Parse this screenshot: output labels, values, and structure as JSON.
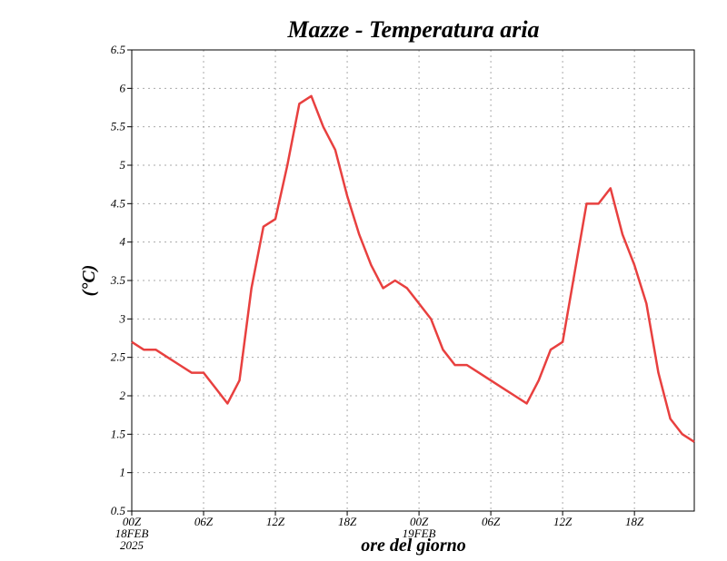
{
  "chart_data": {
    "type": "line",
    "title": "Mazze - Temperatura aria",
    "xlabel": "ore del giorno",
    "ylabel": "(°C)",
    "x": [
      0,
      1,
      2,
      3,
      4,
      5,
      6,
      7,
      8,
      9,
      10,
      11,
      12,
      13,
      14,
      15,
      16,
      17,
      18,
      19,
      20,
      21,
      22,
      23,
      24,
      25,
      26,
      27,
      28,
      29,
      30,
      31,
      32,
      33,
      34,
      35,
      36,
      37,
      38,
      39,
      40,
      41,
      42,
      43,
      44,
      45,
      46,
      47
    ],
    "series": [
      {
        "name": "Temperatura aria",
        "color": "#e8403f",
        "values": [
          2.7,
          2.6,
          2.6,
          2.5,
          2.4,
          2.3,
          2.3,
          2.1,
          1.9,
          2.2,
          3.4,
          4.2,
          4.3,
          5.0,
          5.8,
          5.9,
          5.5,
          5.2,
          4.6,
          4.1,
          3.7,
          3.4,
          3.5,
          3.4,
          3.2,
          3.0,
          2.6,
          2.4,
          2.4,
          2.3,
          2.2,
          2.1,
          2.0,
          1.9,
          2.2,
          2.6,
          2.7,
          3.6,
          4.5,
          4.5,
          4.7,
          4.1,
          3.7,
          3.2,
          2.3,
          1.7,
          1.5,
          1.4
        ]
      }
    ],
    "xlim": [
      0,
      47
    ],
    "xticks": [
      {
        "value": 0,
        "label": [
          "00Z",
          "18FEB",
          "2025"
        ]
      },
      {
        "value": 6,
        "label": [
          "06Z"
        ]
      },
      {
        "value": 12,
        "label": [
          "12Z"
        ]
      },
      {
        "value": 18,
        "label": [
          "18Z"
        ]
      },
      {
        "value": 24,
        "label": [
          "00Z",
          "19FEB"
        ]
      },
      {
        "value": 30,
        "label": [
          "06Z"
        ]
      },
      {
        "value": 36,
        "label": [
          "12Z"
        ]
      },
      {
        "value": 42,
        "label": [
          "18Z"
        ]
      }
    ],
    "ylim": [
      0.5,
      6.5
    ],
    "yticks": [
      0.5,
      1,
      1.5,
      2,
      2.5,
      3,
      3.5,
      4,
      4.5,
      5,
      5.5,
      6,
      6.5
    ],
    "grid": true
  }
}
